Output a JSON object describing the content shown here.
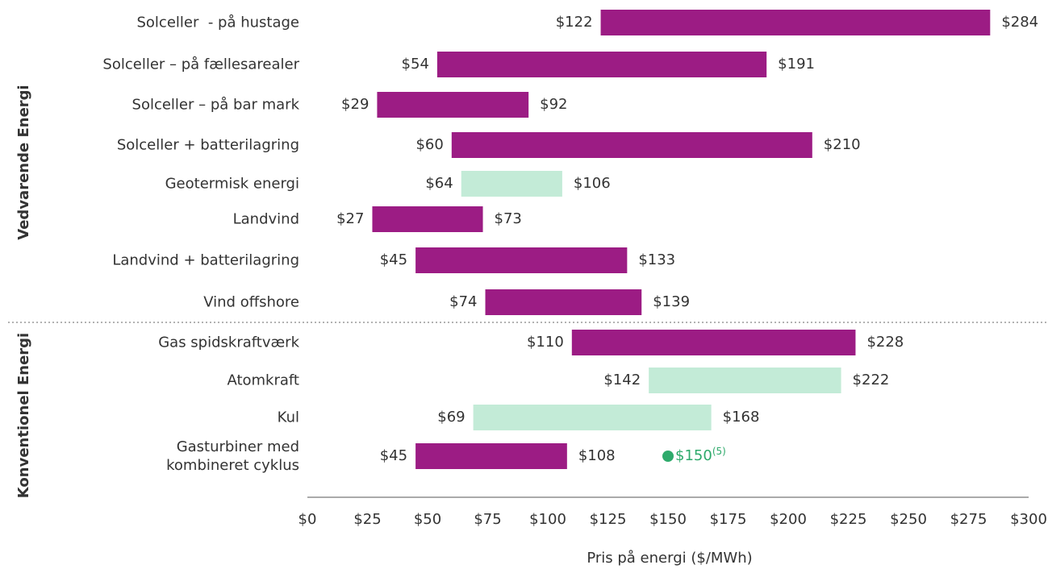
{
  "chart_data": {
    "type": "range_bar",
    "orientation": "horizontal",
    "categories": [
      "Solceller  - på hustage",
      "Solceller – på fællesarealer",
      "Solceller – på bar mark",
      "Solceller + batterilagring",
      "Geotermisk energi",
      "Landvind",
      "Landvind + batterilagring",
      "Vind offshore",
      "Gas spidskraftværk",
      "Atomkraft",
      "Kul",
      "Gasturbiner med\nkombineret cyklus"
    ],
    "low": [
      122,
      54,
      29,
      60,
      64,
      27,
      45,
      74,
      110,
      142,
      69,
      45
    ],
    "low_labels": [
      "$122",
      "$54",
      "$29",
      "$60",
      "$64",
      "$27",
      "$45",
      "$74",
      "$110",
      "$142",
      "$69",
      "$45"
    ],
    "high": [
      284,
      191,
      92,
      210,
      106,
      73,
      133,
      139,
      228,
      222,
      168,
      108
    ],
    "high_labels": [
      "$284",
      "$191",
      "$92",
      "$210",
      "$106",
      "$73",
      "$133",
      "$139",
      "$228",
      "$222",
      "$168",
      "$108"
    ],
    "colors": [
      "#9c1c84",
      "#9c1c84",
      "#9c1c84",
      "#9c1c84",
      "#c3ebd7",
      "#9c1c84",
      "#9c1c84",
      "#9c1c84",
      "#9c1c84",
      "#c3ebd7",
      "#c3ebd7",
      "#9c1c84"
    ],
    "groups": [
      {
        "label": "Vedvarende Energi",
        "categories": 8
      },
      {
        "label": "Konventionel Energi",
        "categories": 4
      }
    ],
    "annotations": [
      {
        "category": "Gasturbiner med\nkombineret cyklus",
        "value": 150,
        "label": "$150",
        "superscript": "(5)",
        "color": "#2eaa6b"
      }
    ],
    "xlabel": "Pris på energi ($/MWh)",
    "xlim": [
      0,
      300
    ],
    "xticks": [
      {
        "value": 0,
        "label": "$0"
      },
      {
        "value": 25,
        "label": "$25"
      },
      {
        "value": 50,
        "label": "$50"
      },
      {
        "value": 75,
        "label": "$75"
      },
      {
        "value": 100,
        "label": "$100"
      },
      {
        "value": 125,
        "label": "$125"
      },
      {
        "value": 150,
        "label": "$150"
      },
      {
        "value": 175,
        "label": "$175"
      },
      {
        "value": 200,
        "label": "$200"
      },
      {
        "value": 225,
        "label": "$225"
      },
      {
        "value": 250,
        "label": "$250"
      },
      {
        "value": 275,
        "label": "$275"
      },
      {
        "value": 300,
        "label": "$300"
      }
    ],
    "grid": false
  }
}
